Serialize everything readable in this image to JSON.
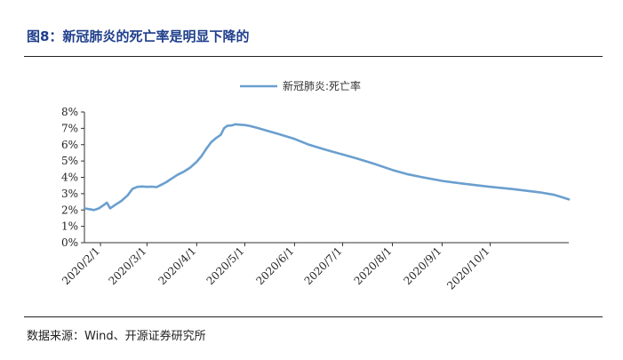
{
  "header": {
    "title": "图8：新冠肺炎的死亡率是明显下降的"
  },
  "footer": {
    "source": "数据来源：Wind、开源证券研究所"
  },
  "chart_data": {
    "type": "line",
    "title": "图8：新冠肺炎的死亡率是明显下降的",
    "xlabel": "",
    "ylabel": "",
    "ylim": [
      0,
      8
    ],
    "y_ticks": [
      "0%",
      "1%",
      "2%",
      "3%",
      "4%",
      "5%",
      "6%",
      "7%",
      "8%"
    ],
    "x_range": [
      "2020-01-22",
      "2020-11-19"
    ],
    "x_ticks": [
      {
        "date": "2020-02-01",
        "label": "2020/2/1"
      },
      {
        "date": "2020-03-01",
        "label": "2020/3/1"
      },
      {
        "date": "2020-04-01",
        "label": "2020/4/1"
      },
      {
        "date": "2020-05-01",
        "label": "2020/5/1"
      },
      {
        "date": "2020-06-01",
        "label": "2020/6/1"
      },
      {
        "date": "2020-07-01",
        "label": "2020/7/1"
      },
      {
        "date": "2020-08-01",
        "label": "2020/8/1"
      },
      {
        "date": "2020-09-01",
        "label": "2020/9/1"
      },
      {
        "date": "2020-10-01",
        "label": "2020/10/1"
      }
    ],
    "legend": "top-center",
    "grid": false,
    "series": [
      {
        "name": "新冠肺炎:死亡率",
        "color": "#6a9fcf",
        "points": [
          [
            "2020-01-22",
            2.1
          ],
          [
            "2020-01-25",
            2.05
          ],
          [
            "2020-01-28",
            2.0
          ],
          [
            "2020-01-31",
            2.1
          ],
          [
            "2020-02-03",
            2.3
          ],
          [
            "2020-02-05",
            2.45
          ],
          [
            "2020-02-07",
            2.1
          ],
          [
            "2020-02-10",
            2.3
          ],
          [
            "2020-02-14",
            2.55
          ],
          [
            "2020-02-18",
            2.9
          ],
          [
            "2020-02-21",
            3.3
          ],
          [
            "2020-02-24",
            3.42
          ],
          [
            "2020-02-27",
            3.44
          ],
          [
            "2020-03-01",
            3.42
          ],
          [
            "2020-03-04",
            3.43
          ],
          [
            "2020-03-07",
            3.4
          ],
          [
            "2020-03-10",
            3.55
          ],
          [
            "2020-03-13",
            3.7
          ],
          [
            "2020-03-16",
            3.9
          ],
          [
            "2020-03-20",
            4.15
          ],
          [
            "2020-03-24",
            4.35
          ],
          [
            "2020-03-28",
            4.6
          ],
          [
            "2020-04-01",
            4.95
          ],
          [
            "2020-04-04",
            5.3
          ],
          [
            "2020-04-07",
            5.75
          ],
          [
            "2020-04-10",
            6.15
          ],
          [
            "2020-04-13",
            6.4
          ],
          [
            "2020-04-16",
            6.6
          ],
          [
            "2020-04-18",
            7.0
          ],
          [
            "2020-04-20",
            7.15
          ],
          [
            "2020-04-23",
            7.18
          ],
          [
            "2020-04-25",
            7.25
          ],
          [
            "2020-04-28",
            7.22
          ],
          [
            "2020-05-01",
            7.2
          ],
          [
            "2020-05-04",
            7.15
          ],
          [
            "2020-05-08",
            7.05
          ],
          [
            "2020-05-15",
            6.85
          ],
          [
            "2020-05-22",
            6.65
          ],
          [
            "2020-06-01",
            6.35
          ],
          [
            "2020-06-10",
            6.0
          ],
          [
            "2020-06-20",
            5.7
          ],
          [
            "2020-07-01",
            5.4
          ],
          [
            "2020-07-10",
            5.15
          ],
          [
            "2020-07-20",
            4.85
          ],
          [
            "2020-08-01",
            4.45
          ],
          [
            "2020-08-10",
            4.2
          ],
          [
            "2020-08-20",
            4.0
          ],
          [
            "2020-09-01",
            3.78
          ],
          [
            "2020-09-15",
            3.6
          ],
          [
            "2020-10-01",
            3.42
          ],
          [
            "2020-10-15",
            3.28
          ],
          [
            "2020-11-01",
            3.08
          ],
          [
            "2020-11-10",
            2.93
          ],
          [
            "2020-11-19",
            2.65
          ]
        ]
      }
    ]
  }
}
